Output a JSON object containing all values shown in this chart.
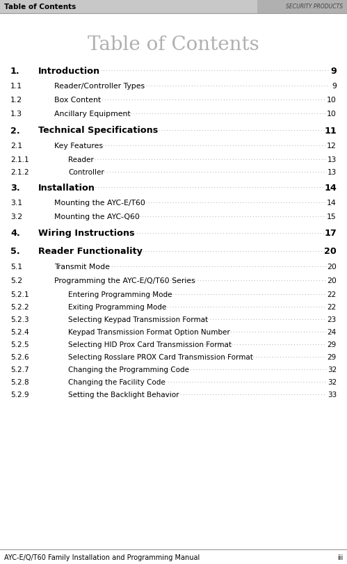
{
  "title": "Table of Contents",
  "header_left": "Table of Contents",
  "header_right": "SECURITY PRODUCTS",
  "footer_left": "AYC-E/Q/T60 Family Installation and Programming Manual",
  "footer_right": "iii",
  "background_color": "#ffffff",
  "title_color": "#b0b0b0",
  "entries": [
    {
      "num": "1.",
      "title": "Introduction",
      "page": "9",
      "bold": true,
      "indent": 0
    },
    {
      "num": "1.1",
      "title": "Reader/Controller Types",
      "page": "9",
      "bold": false,
      "indent": 1
    },
    {
      "num": "1.2",
      "title": "Box Content",
      "page": "10",
      "bold": false,
      "indent": 1
    },
    {
      "num": "1.3",
      "title": "Ancillary Equipment",
      "page": "10",
      "bold": false,
      "indent": 1
    },
    {
      "num": "2.",
      "title": "Technical Specifications",
      "page": "11",
      "bold": true,
      "indent": 0
    },
    {
      "num": "2.1",
      "title": "Key Features",
      "page": "12",
      "bold": false,
      "indent": 1
    },
    {
      "num": "2.1.1",
      "title": "Reader",
      "page": "13",
      "bold": false,
      "indent": 2
    },
    {
      "num": "2.1.2",
      "title": "Controller",
      "page": "13",
      "bold": false,
      "indent": 2
    },
    {
      "num": "3.",
      "title": "Installation",
      "page": "14",
      "bold": true,
      "indent": 0
    },
    {
      "num": "3.1",
      "title": "Mounting the AYC-E/T60",
      "page": "14",
      "bold": false,
      "indent": 1
    },
    {
      "num": "3.2",
      "title": "Mounting the AYC-Q60",
      "page": "15",
      "bold": false,
      "indent": 1
    },
    {
      "num": "4.",
      "title": "Wiring Instructions",
      "page": "17",
      "bold": true,
      "indent": 0
    },
    {
      "num": "5.",
      "title": "Reader Functionality",
      "page": "20",
      "bold": true,
      "indent": 0
    },
    {
      "num": "5.1",
      "title": "Transmit Mode",
      "page": "20",
      "bold": false,
      "indent": 1
    },
    {
      "num": "5.2",
      "title": "Programming the AYC-E/Q/T60 Series",
      "page": "20",
      "bold": false,
      "indent": 1
    },
    {
      "num": "5.2.1",
      "title": "Entering Programming Mode",
      "page": "22",
      "bold": false,
      "indent": 2
    },
    {
      "num": "5.2.2",
      "title": "Exiting Programming Mode",
      "page": "22",
      "bold": false,
      "indent": 2
    },
    {
      "num": "5.2.3",
      "title": "Selecting Keypad Transmission Format",
      "page": "23",
      "bold": false,
      "indent": 2
    },
    {
      "num": "5.2.4",
      "title": "Keypad Transmission Format Option Number",
      "page": "24",
      "bold": false,
      "indent": 2
    },
    {
      "num": "5.2.5",
      "title": "Selecting HID Prox Card Transmission Format",
      "page": "29",
      "bold": false,
      "indent": 2
    },
    {
      "num": "5.2.6",
      "title": "Selecting Rosslare PROX Card Transmission Format",
      "page": "29",
      "bold": false,
      "indent": 2
    },
    {
      "num": "5.2.7",
      "title": "Changing the Programming Code",
      "page": "32",
      "bold": false,
      "indent": 2
    },
    {
      "num": "5.2.8",
      "title": "Changing the Facility Code",
      "page": "32",
      "bold": false,
      "indent": 2
    },
    {
      "num": "5.2.9",
      "title": "Setting the Backlight Behavior",
      "page": "33",
      "bold": false,
      "indent": 2
    }
  ]
}
